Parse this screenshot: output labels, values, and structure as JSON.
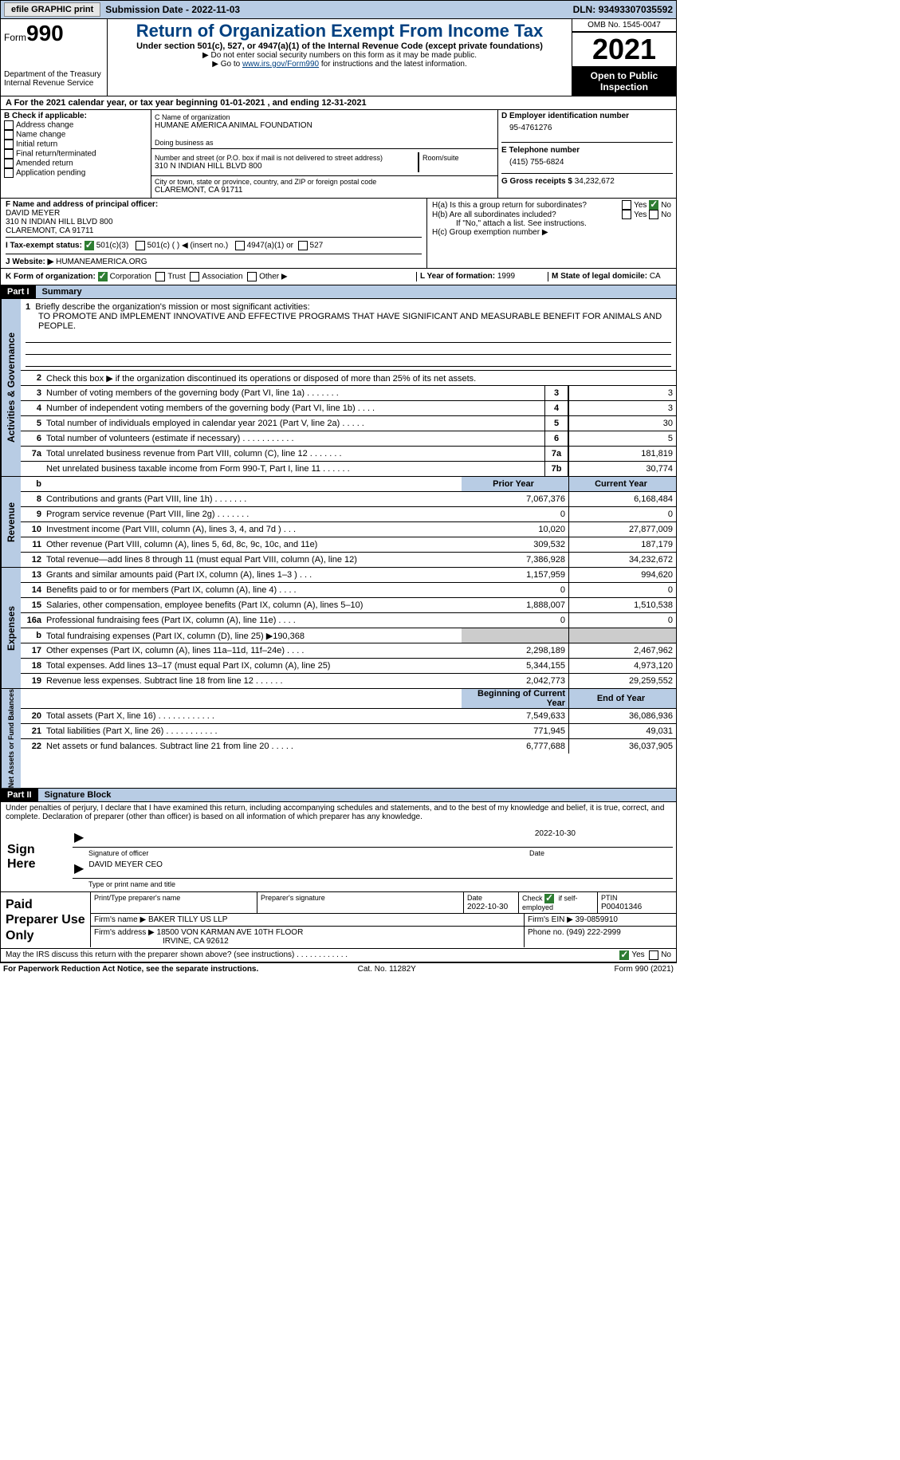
{
  "topbar": {
    "efile": "efile GRAPHIC print",
    "subdate_lbl": "Submission Date - ",
    "subdate": "2022-11-03",
    "dln_lbl": "DLN: ",
    "dln": "93493307035592"
  },
  "hdr": {
    "form": "Form",
    "num": "990",
    "dept": "Department of the Treasury",
    "irs": "Internal Revenue Service",
    "title": "Return of Organization Exempt From Income Tax",
    "sub1": "Under section 501(c), 527, or 4947(a)(1) of the Internal Revenue Code (except private foundations)",
    "sub2": "▶ Do not enter social security numbers on this form as it may be made public.",
    "sub3a": "▶ Go to ",
    "sub3link": "www.irs.gov/Form990",
    "sub3b": " for instructions and the latest information.",
    "omb": "OMB No. 1545-0047",
    "year": "2021",
    "otp": "Open to Public Inspection"
  },
  "A": {
    "text": "A   For the 2021 calendar year, or tax year beginning 01-01-2021   , and ending 12-31-2021"
  },
  "B": {
    "lbl": "B Check if applicable:",
    "items": [
      "Address change",
      "Name change",
      "Initial return",
      "Final return/terminated",
      "Amended return",
      "Application pending"
    ]
  },
  "C": {
    "name_lbl": "C Name of organization",
    "name": "HUMANE AMERICA ANIMAL FOUNDATION",
    "dba_lbl": "Doing business as",
    "addr_lbl": "Number and street (or P.O. box if mail is not delivered to street address)",
    "room_lbl": "Room/suite",
    "addr": "310 N INDIAN HILL BLVD 800",
    "city_lbl": "City or town, state or province, country, and ZIP or foreign postal code",
    "city": "CLAREMONT, CA  91711"
  },
  "D": {
    "lbl": "D Employer identification number",
    "val": "95-4761276"
  },
  "E": {
    "lbl": "E Telephone number",
    "val": "(415) 755-6824"
  },
  "G": {
    "lbl": "G Gross receipts $ ",
    "val": "34,232,672"
  },
  "F": {
    "lbl": "F  Name and address of principal officer:",
    "name": "DAVID MEYER",
    "addr": "310 N INDIAN HILL BLVD 800",
    "city": "CLAREMONT, CA  91711"
  },
  "H": {
    "a": "H(a)  Is this a group return for subordinates?",
    "b": "H(b)  Are all subordinates included?",
    "bnote": "If \"No,\" attach a list. See instructions.",
    "c": "H(c)  Group exemption number ▶",
    "yes": "Yes",
    "no": "No"
  },
  "I": {
    "lbl": "I    Tax-exempt status:",
    "o1": "501(c)(3)",
    "o2": "501(c) (  ) ◀ (insert no.)",
    "o3": "4947(a)(1) or",
    "o4": "527"
  },
  "J": {
    "lbl": "J   Website: ▶",
    "val": "  HUMANEAMERICA.ORG"
  },
  "K": {
    "lbl": "K Form of organization:",
    "o1": "Corporation",
    "o2": "Trust",
    "o3": "Association",
    "o4": "Other ▶"
  },
  "L": {
    "lbl": "L Year of formation: ",
    "val": "1999"
  },
  "M": {
    "lbl": "M State of legal domicile: ",
    "val": "CA"
  },
  "P1": {
    "part": "Part I",
    "title": "Summary"
  },
  "sum": {
    "l1": "Briefly describe the organization's mission or most significant activities:",
    "l1v": "TO PROMOTE AND IMPLEMENT INNOVATIVE AND EFFECTIVE PROGRAMS THAT HAVE SIGNIFICANT AND MEASURABLE BENEFIT FOR ANIMALS AND PEOPLE.",
    "l2": "Check this box ▶       if the organization discontinued its operations or disposed of more than 25% of its net assets.",
    "rows_ag": [
      {
        "n": "3",
        "t": "Number of voting members of the governing body (Part VI, line 1a)   .    .    .    .    .    .    .",
        "b": "3",
        "v": "3"
      },
      {
        "n": "4",
        "t": "Number of independent voting members of the governing body (Part VI, line 1b)   .    .    .    .",
        "b": "4",
        "v": "3"
      },
      {
        "n": "5",
        "t": "Total number of individuals employed in calendar year 2021 (Part V, line 2a)   .    .    .    .    .",
        "b": "5",
        "v": "30"
      },
      {
        "n": "6",
        "t": "Total number of volunteers (estimate if necessary)    .    .    .    .    .    .    .    .    .    .    .",
        "b": "6",
        "v": "5"
      },
      {
        "n": "7a",
        "t": "Total unrelated business revenue from Part VIII, column (C), line 12   .    .    .    .    .    .    .",
        "b": "7a",
        "v": "181,819"
      },
      {
        "n": "",
        "t": "Net unrelated business taxable income from Form 990-T, Part I, line 11   .    .    .    .    .    .",
        "b": "7b",
        "v": "30,774"
      }
    ],
    "colh": {
      "py": "Prior Year",
      "cy": "Current Year",
      "bcy": "Beginning of Current Year",
      "ey": "End of Year"
    },
    "rev": [
      {
        "n": "8",
        "t": "Contributions and grants (Part VIII, line 1h)    .    .    .    .    .    .    .",
        "p": "7,067,376",
        "c": "6,168,484"
      },
      {
        "n": "9",
        "t": "Program service revenue (Part VIII, line 2g)    .    .    .    .    .    .    .",
        "p": "0",
        "c": "0"
      },
      {
        "n": "10",
        "t": "Investment income (Part VIII, column (A), lines 3, 4, and 7d )    .    .    .",
        "p": "10,020",
        "c": "27,877,009"
      },
      {
        "n": "11",
        "t": "Other revenue (Part VIII, column (A), lines 5, 6d, 8c, 9c, 10c, and 11e)",
        "p": "309,532",
        "c": "187,179"
      },
      {
        "n": "12",
        "t": "Total revenue—add lines 8 through 11 (must equal Part VIII, column (A), line 12)",
        "p": "7,386,928",
        "c": "34,232,672"
      }
    ],
    "exp": [
      {
        "n": "13",
        "t": "Grants and similar amounts paid (Part IX, column (A), lines 1–3 )   .    .    .",
        "p": "1,157,959",
        "c": "994,620"
      },
      {
        "n": "14",
        "t": "Benefits paid to or for members (Part IX, column (A), line 4)   .    .    .    .",
        "p": "0",
        "c": "0"
      },
      {
        "n": "15",
        "t": "Salaries, other compensation, employee benefits (Part IX, column (A), lines 5–10)",
        "p": "1,888,007",
        "c": "1,510,538"
      },
      {
        "n": "16a",
        "t": "Professional fundraising fees (Part IX, column (A), line 11e)    .    .    .    .",
        "p": "0",
        "c": "0"
      },
      {
        "n": "b",
        "t": "Total fundraising expenses (Part IX, column (D), line 25) ▶190,368",
        "p": "",
        "c": "",
        "shade": true
      },
      {
        "n": "17",
        "t": "Other expenses (Part IX, column (A), lines 11a–11d, 11f–24e)    .    .    .    .",
        "p": "2,298,189",
        "c": "2,467,962"
      },
      {
        "n": "18",
        "t": "Total expenses. Add lines 13–17 (must equal Part IX, column (A), line 25)",
        "p": "5,344,155",
        "c": "4,973,120"
      },
      {
        "n": "19",
        "t": "Revenue less expenses. Subtract line 18 from line 12   .    .    .    .    .    .",
        "p": "2,042,773",
        "c": "29,259,552"
      }
    ],
    "na": [
      {
        "n": "20",
        "t": "Total assets (Part X, line 16)   .    .    .    .    .    .    .    .    .    .    .    .",
        "p": "7,549,633",
        "c": "36,086,936"
      },
      {
        "n": "21",
        "t": "Total liabilities (Part X, line 26)   .    .    .    .    .    .    .    .    .    .    .",
        "p": "771,945",
        "c": "49,031"
      },
      {
        "n": "22",
        "t": "Net assets or fund balances. Subtract line 21 from line 20   .    .    .    .    .",
        "p": "6,777,688",
        "c": "36,037,905"
      }
    ]
  },
  "vlabels": {
    "ag": "Activities & Governance",
    "rev": "Revenue",
    "exp": "Expenses",
    "na": "Net Assets or Fund Balances"
  },
  "P2": {
    "part": "Part II",
    "title": "Signature Block",
    "decl": "Under penalties of perjury, I declare that I have examined this return, including accompanying schedules and statements, and to the best of my knowledge and belief, it is true, correct, and complete. Declaration of preparer (other than officer) is based on all information of which preparer has any knowledge."
  },
  "sign": {
    "here": "Sign Here",
    "sig_lbl": "Signature of officer",
    "date": "2022-10-30",
    "name": "DAVID MEYER  CEO",
    "name_lbl": "Type or print name and title"
  },
  "prep": {
    "title": "Paid Preparer Use Only",
    "h1": "Print/Type preparer's name",
    "h2": "Preparer's signature",
    "h3": "Date",
    "h3v": "2022-10-30",
    "h4": "Check        if self-employed",
    "h5": "PTIN",
    "h5v": "P00401346",
    "firm_lbl": "Firm's name     ▶ ",
    "firm": "BAKER TILLY US LLP",
    "ein_lbl": "Firm's EIN ▶ ",
    "ein": "39-0859910",
    "addr_lbl": "Firm's address ▶ ",
    "addr1": "18500 VON KARMAN AVE 10TH FLOOR",
    "addr2": "IRVINE, CA  92612",
    "ph_lbl": "Phone no. ",
    "ph": "(949) 222-2999"
  },
  "discuss": {
    "q": "May the IRS discuss this return with the preparer shown above? (see instructions)    .    .    .    .    .    .    .    .    .    .    .    .",
    "yes": "Yes",
    "no": "No"
  },
  "foot": {
    "l": "For Paperwork Reduction Act Notice, see the separate instructions.",
    "c": "Cat. No. 11282Y",
    "r": "Form 990 (2021)"
  }
}
